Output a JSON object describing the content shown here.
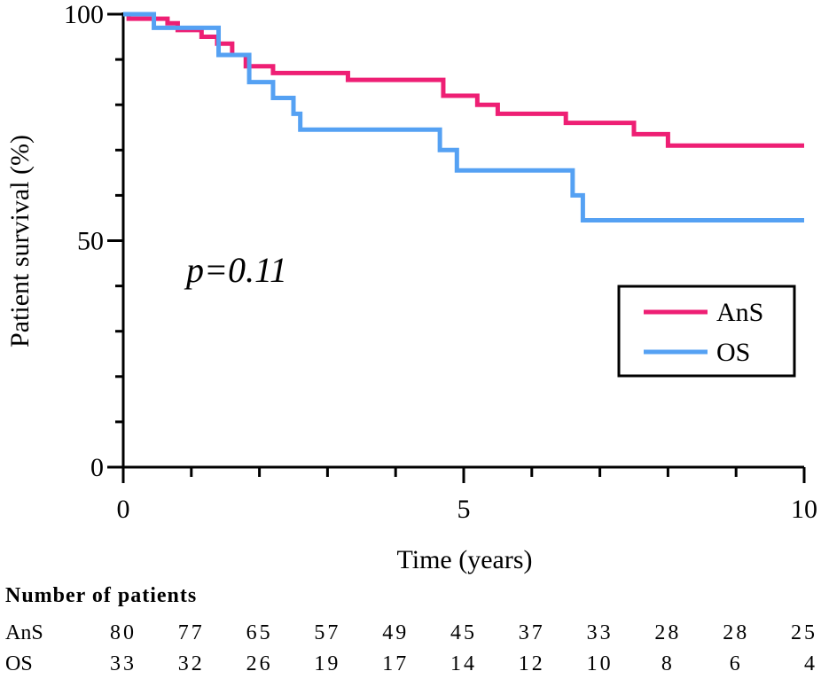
{
  "chart_data": {
    "type": "line",
    "xlabel": "Time (years)",
    "ylabel": "Patient survival (%)",
    "xlim": [
      0,
      10
    ],
    "ylim": [
      0,
      100
    ],
    "x_ticks": [
      "0",
      "5",
      "10"
    ],
    "y_ticks": [
      "0",
      "50",
      "100"
    ],
    "annotation": "p=0.11",
    "legend_position": "right",
    "series": [
      {
        "name": "AnS",
        "color": "#ee1f74",
        "steps": [
          [
            0,
            100
          ],
          [
            0.08,
            99
          ],
          [
            0.65,
            98
          ],
          [
            0.8,
            96.5
          ],
          [
            1.15,
            95
          ],
          [
            1.38,
            93.5
          ],
          [
            1.6,
            91
          ],
          [
            1.8,
            88.5
          ],
          [
            2.2,
            87
          ],
          [
            3.3,
            85.5
          ],
          [
            4.7,
            82
          ],
          [
            5.2,
            80
          ],
          [
            5.5,
            78
          ],
          [
            6.5,
            76
          ],
          [
            7.5,
            73.5
          ],
          [
            8.0,
            71
          ],
          [
            10,
            71
          ]
        ]
      },
      {
        "name": "OS",
        "color": "#55a1f3",
        "steps": [
          [
            0,
            100
          ],
          [
            0.45,
            97
          ],
          [
            1.4,
            91
          ],
          [
            1.85,
            85
          ],
          [
            2.2,
            81.5
          ],
          [
            2.5,
            78
          ],
          [
            2.6,
            74.5
          ],
          [
            4.65,
            70
          ],
          [
            4.9,
            65.5
          ],
          [
            6.6,
            60
          ],
          [
            6.75,
            54.5
          ],
          [
            10,
            54.5
          ]
        ]
      }
    ]
  },
  "risk_table": {
    "title": "Number of patients",
    "rows": [
      {
        "label": "AnS",
        "values": [
          "80",
          "77",
          "65",
          "57",
          "49",
          "45",
          "37",
          "33",
          "28",
          "28",
          "25"
        ]
      },
      {
        "label": "OS",
        "values": [
          "33",
          "32",
          "26",
          "19",
          "17",
          "14",
          "12",
          "10",
          "8",
          "6",
          "4"
        ]
      }
    ]
  }
}
